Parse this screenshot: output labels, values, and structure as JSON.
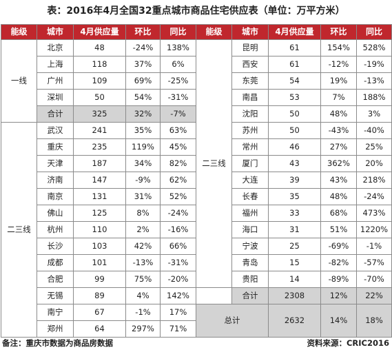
{
  "title": "表：2016年4月全国32重点城市商品住宅供应表（单位：万平方米）",
  "headers": [
    "能级",
    "城市",
    "4月供应量",
    "环比",
    "同比",
    "能级",
    "城市",
    "4月供应量",
    "环比",
    "同比"
  ],
  "left_tier_first": "一线",
  "left_tier_second": "二三线",
  "right_tier": "二三线",
  "left_first_tier_rows": [
    [
      "北京",
      "48",
      "-24%",
      "138%"
    ],
    [
      "上海",
      "118",
      "37%",
      "6%"
    ],
    [
      "广州",
      "109",
      "69%",
      "-25%"
    ],
    [
      "深圳",
      "50",
      "54%",
      "-31%"
    ]
  ],
  "left_first_tier_subtotal": [
    "合计",
    "325",
    "32%",
    "-7%"
  ],
  "left_second_tier_rows": [
    [
      "武汉",
      "241",
      "35%",
      "63%"
    ],
    [
      "重庆",
      "235",
      "119%",
      "45%"
    ],
    [
      "天津",
      "187",
      "34%",
      "82%"
    ],
    [
      "济南",
      "147",
      "-9%",
      "62%"
    ],
    [
      "南京",
      "131",
      "31%",
      "52%"
    ],
    [
      "佛山",
      "125",
      "8%",
      "-24%"
    ],
    [
      "杭州",
      "110",
      "2%",
      "-16%"
    ],
    [
      "长沙",
      "103",
      "42%",
      "66%"
    ],
    [
      "成都",
      "101",
      "-13%",
      "-31%"
    ],
    [
      "合肥",
      "99",
      "75%",
      "-20%"
    ],
    [
      "无锡",
      "89",
      "4%",
      "142%"
    ],
    [
      "南宁",
      "67",
      "-1%",
      "17%"
    ],
    [
      "郑州",
      "64",
      "297%",
      "71%"
    ]
  ],
  "right_rows": [
    [
      "昆明",
      "61",
      "154%",
      "528%"
    ],
    [
      "西安",
      "61",
      "-12%",
      "-19%"
    ],
    [
      "东莞",
      "54",
      "19%",
      "-13%"
    ],
    [
      "南昌",
      "53",
      "7%",
      "188%"
    ],
    [
      "沈阳",
      "50",
      "48%",
      "3%"
    ],
    [
      "苏州",
      "50",
      "-43%",
      "-40%"
    ],
    [
      "常州",
      "46",
      "27%",
      "25%"
    ],
    [
      "厦门",
      "43",
      "362%",
      "20%"
    ],
    [
      "大连",
      "39",
      "43%",
      "218%"
    ],
    [
      "长春",
      "35",
      "48%",
      "-24%"
    ],
    [
      "福州",
      "33",
      "68%",
      "473%"
    ],
    [
      "海口",
      "31",
      "51%",
      "1220%"
    ],
    [
      "宁波",
      "25",
      "-69%",
      "-1%"
    ],
    [
      "青岛",
      "15",
      "-82%",
      "-57%"
    ],
    [
      "贵阳",
      "14",
      "-89%",
      "-70%"
    ]
  ],
  "right_subtotal": [
    "合计",
    "2308",
    "12%",
    "22%"
  ],
  "grand_total": [
    "总计",
    "2632",
    "14%",
    "18%"
  ],
  "footer_note": "备注：重庆市数据为商品房数据",
  "footer_source": "资料来源：CRIC2016",
  "colors": {
    "header_bg": "#c0272d",
    "header_text": "#ffffff",
    "subtotal_bg": "#d3d3d3",
    "border": "#8a8a8a"
  }
}
